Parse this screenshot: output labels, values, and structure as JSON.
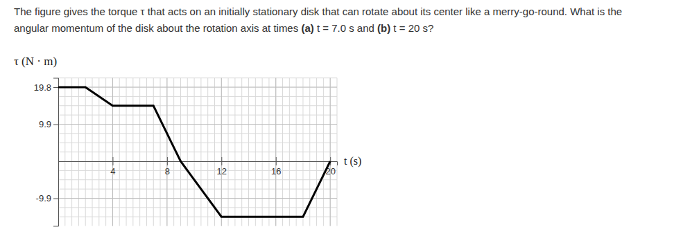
{
  "question_lines": [
    [
      {
        "text": "The figure gives the torque τ that acts on an initially stationary disk that can rotate about its center like a merry-go-round. What is the",
        "bold": false
      }
    ],
    [
      {
        "text": "angular momentum of the disk about the rotation axis at times ",
        "bold": false
      },
      {
        "text": "(a)",
        "bold": true
      },
      {
        "text": " t = 7.0 s and ",
        "bold": false
      },
      {
        "text": "(b)",
        "bold": true
      },
      {
        "text": " t = 20 s?",
        "bold": false
      }
    ]
  ],
  "chart_data": {
    "type": "line",
    "x_label": "t (s)",
    "y_label": "τ (N · m)",
    "x": [
      0,
      2,
      4,
      7,
      9,
      12,
      18,
      20
    ],
    "series": [
      {
        "color": "#000000",
        "values": [
          19.8,
          19.8,
          14.85,
          14.85,
          0,
          -14.85,
          -14.85,
          0
        ]
      }
    ],
    "xlim": [
      0,
      20.5
    ],
    "ylim": [
      -17.3,
      22.3
    ],
    "xticks": [
      4,
      8,
      12,
      16,
      20
    ],
    "yticks": [
      -9.9,
      9.9,
      19.8
    ],
    "grid": true
  }
}
